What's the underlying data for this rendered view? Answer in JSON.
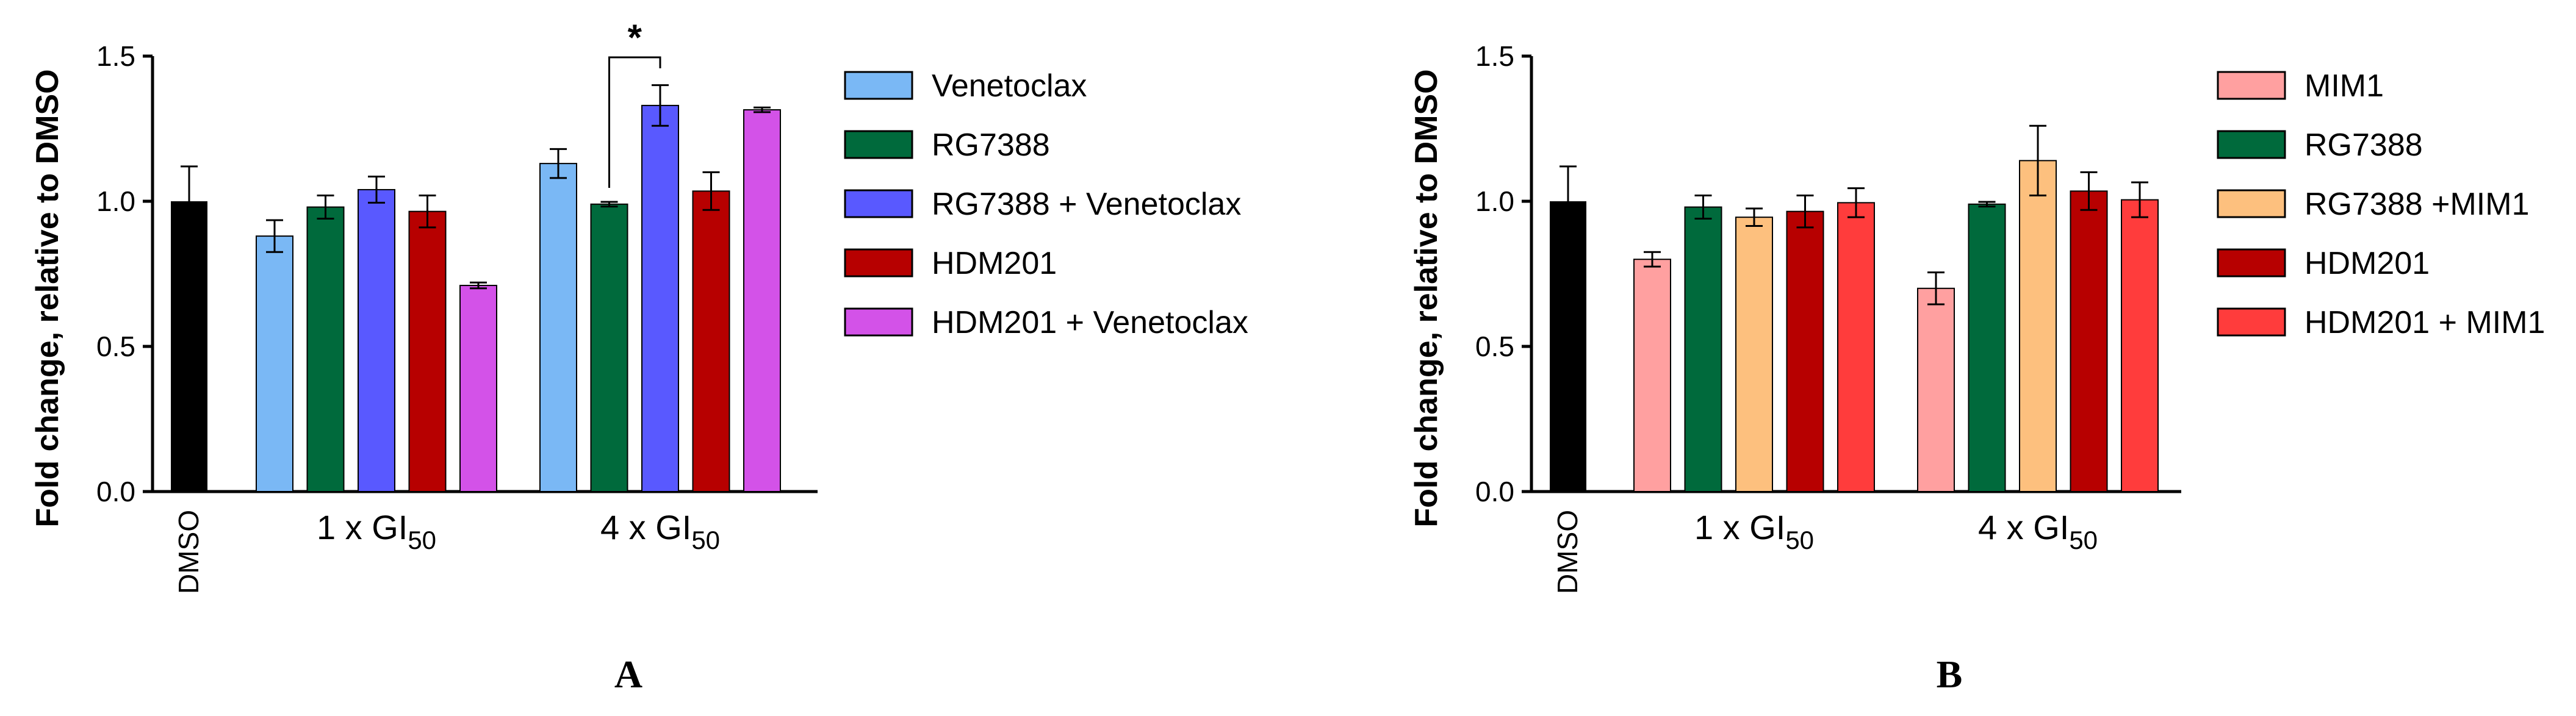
{
  "colors": {
    "dmso": "#000000",
    "venetoclax": "#7ab8f5",
    "rg7388": "#006a3c",
    "rg7388_venetoclax": "#5959ff",
    "hdm201": "#b70000",
    "hdm201_venetoclax": "#d352e8",
    "mim1": "#ffa0a0",
    "rg7388_mim1": "#fdc07e",
    "hdm201_mim1": "#ff3c3c"
  },
  "chart_data": [
    {
      "type": "bar",
      "panel_label": "A",
      "ylabel": "Fold change, relative to DMSO",
      "ylim": [
        0,
        1.5
      ],
      "yticks": [
        "0.0",
        "0.5",
        "1.0",
        "1.5"
      ],
      "control": {
        "label": "DMSO",
        "value": 1.0,
        "error": 0.12
      },
      "categories": [
        "1 x GI",
        "4 x GI"
      ],
      "category_subscript": "50",
      "series": [
        {
          "name": "Venetoclax",
          "color_key": "venetoclax",
          "values": [
            0.88,
            1.13
          ],
          "errors": [
            0.055,
            0.05
          ]
        },
        {
          "name": "RG7388",
          "color_key": "rg7388",
          "values": [
            0.98,
            0.99
          ],
          "errors": [
            0.04,
            0.008
          ]
        },
        {
          "name": "RG7388 + Venetoclax",
          "color_key": "rg7388_venetoclax",
          "values": [
            1.04,
            1.33
          ],
          "errors": [
            0.045,
            0.07
          ]
        },
        {
          "name": "HDM201",
          "color_key": "hdm201",
          "values": [
            0.965,
            1.035
          ],
          "errors": [
            0.055,
            0.065
          ]
        },
        {
          "name": "HDM201 + Venetoclax",
          "color_key": "hdm201_venetoclax",
          "values": [
            0.71,
            1.315
          ],
          "errors": [
            0.01,
            0.008
          ]
        }
      ],
      "annotations": [
        {
          "text": "*",
          "category": 1,
          "from_series": 1,
          "to_series": 2
        }
      ],
      "legend": "right"
    },
    {
      "type": "bar",
      "panel_label": "B",
      "ylabel": "Fold change, relative to DMSO",
      "ylim": [
        0,
        1.5
      ],
      "yticks": [
        "0.0",
        "0.5",
        "1.0",
        "1.5"
      ],
      "control": {
        "label": "DMSO",
        "value": 1.0,
        "error": 0.12
      },
      "categories": [
        "1 x GI",
        "4 x GI"
      ],
      "category_subscript": "50",
      "series": [
        {
          "name": "MIM1",
          "color_key": "mim1",
          "values": [
            0.8,
            0.7
          ],
          "errors": [
            0.025,
            0.055
          ]
        },
        {
          "name": "RG7388",
          "color_key": "rg7388",
          "values": [
            0.98,
            0.99
          ],
          "errors": [
            0.04,
            0.008
          ]
        },
        {
          "name": "RG7388  +MIM1",
          "color_key": "rg7388_mim1",
          "values": [
            0.945,
            1.14
          ],
          "errors": [
            0.03,
            0.12
          ]
        },
        {
          "name": "HDM201",
          "color_key": "hdm201",
          "values": [
            0.965,
            1.035
          ],
          "errors": [
            0.055,
            0.065
          ]
        },
        {
          "name": "HDM201 + MIM1",
          "color_key": "hdm201_mim1",
          "values": [
            0.995,
            1.005
          ],
          "errors": [
            0.05,
            0.06
          ]
        }
      ],
      "annotations": [],
      "legend": "right"
    }
  ]
}
